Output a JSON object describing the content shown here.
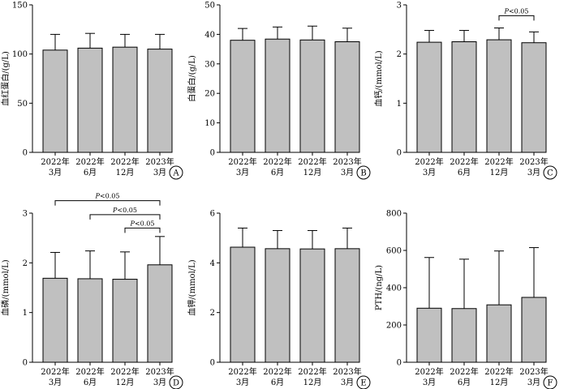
{
  "chart_data": [
    {
      "type": "bar",
      "panel": "A",
      "ylabel": "血红蛋白/(g/L)",
      "ylim": [
        0,
        150
      ],
      "yticks": [
        0,
        50,
        100,
        150
      ],
      "categories": [
        "2022年\n3月",
        "2022年\n6月",
        "2022年\n12月",
        "2023年\n3月"
      ],
      "values": [
        104,
        106,
        107,
        105
      ],
      "error_upper": [
        120,
        121,
        120,
        120
      ],
      "significance": []
    },
    {
      "type": "bar",
      "panel": "B",
      "ylabel": "白蛋白/(g/L)",
      "ylim": [
        0,
        50
      ],
      "yticks": [
        0,
        10,
        20,
        30,
        40,
        50
      ],
      "categories": [
        "2022年\n3月",
        "2022年\n6月",
        "2022年\n12月",
        "2023年\n3月"
      ],
      "values": [
        38.0,
        38.4,
        38.1,
        37.5
      ],
      "error_upper": [
        42.0,
        42.5,
        42.8,
        42.1
      ],
      "significance": []
    },
    {
      "type": "bar",
      "panel": "C",
      "ylabel": "血钙/(mmol/L)",
      "ylim": [
        0,
        3
      ],
      "yticks": [
        0,
        1,
        2,
        3
      ],
      "categories": [
        "2022年\n3月",
        "2022年\n6月",
        "2022年\n12月",
        "2023年\n3月"
      ],
      "values": [
        2.24,
        2.25,
        2.29,
        2.23
      ],
      "error_upper": [
        2.48,
        2.48,
        2.53,
        2.45
      ],
      "significance": [
        {
          "from": 2,
          "to": 3,
          "y": 2.78,
          "label": "P<0.05"
        }
      ]
    },
    {
      "type": "bar",
      "panel": "D",
      "ylabel": "血磷/(mmol/L)",
      "ylim": [
        0,
        3
      ],
      "yticks": [
        0,
        1,
        2,
        3
      ],
      "categories": [
        "2022年\n3月",
        "2022年\n6月",
        "2022年\n12月",
        "2023年\n3月"
      ],
      "values": [
        1.69,
        1.68,
        1.67,
        1.96
      ],
      "error_upper": [
        2.21,
        2.24,
        2.22,
        2.53
      ],
      "significance": [
        {
          "from": 0,
          "to": 3,
          "y": 3.25,
          "label": "P<0.05"
        },
        {
          "from": 1,
          "to": 3,
          "y": 2.97,
          "label": "P<0.05"
        },
        {
          "from": 2,
          "to": 3,
          "y": 2.7,
          "label": "P<0.05"
        }
      ]
    },
    {
      "type": "bar",
      "panel": "E",
      "ylabel": "血钾/(mmol/L)",
      "ylim": [
        0,
        6
      ],
      "yticks": [
        0,
        2,
        4,
        6
      ],
      "categories": [
        "2022年\n3月",
        "2022年\n6月",
        "2022年\n12月",
        "2023年\n3月"
      ],
      "values": [
        4.63,
        4.57,
        4.56,
        4.57
      ],
      "error_upper": [
        5.4,
        5.3,
        5.3,
        5.4
      ],
      "significance": []
    },
    {
      "type": "bar",
      "panel": "F",
      "ylabel": "PTH/(ng/L)",
      "ylim": [
        0,
        800
      ],
      "yticks": [
        0,
        200,
        400,
        600,
        800
      ],
      "categories": [
        "2022年\n3月",
        "2022年\n6月",
        "2022年\n12月",
        "2023年\n3月"
      ],
      "values": [
        290,
        288,
        308,
        348
      ],
      "error_upper": [
        562,
        553,
        597,
        615
      ],
      "significance": []
    }
  ],
  "style": {
    "bar_fill": "#c0c0c0",
    "bar_stroke": "#000000"
  }
}
